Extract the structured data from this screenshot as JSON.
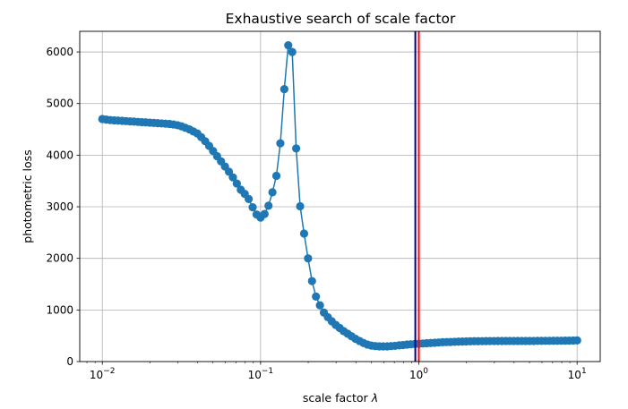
{
  "chart_data": {
    "type": "line",
    "title": "Exhaustive search of scale factor",
    "xlabel": "scale factor",
    "xlabel_symbol": "λ",
    "ylabel": "photometric loss",
    "xscale": "log",
    "xlim": [
      0.0072,
      14.0
    ],
    "ylim": [
      0,
      6400
    ],
    "grid": true,
    "x_ticks": [
      {
        "value": 0.01,
        "base": "10",
        "exp": "−2"
      },
      {
        "value": 0.1,
        "base": "10",
        "exp": "−1"
      },
      {
        "value": 1,
        "base": "10",
        "exp": "0"
      },
      {
        "value": 10,
        "base": "10",
        "exp": "1"
      }
    ],
    "y_ticks": [
      0,
      1000,
      2000,
      3000,
      4000,
      5000,
      6000
    ],
    "series": [
      {
        "color": "#1f77b4",
        "marker": "circle",
        "x_range": [
          0.01,
          10
        ],
        "points_count": 121,
        "y": [
          4700,
          4690,
          4680,
          4675,
          4670,
          4665,
          4660,
          4655,
          4650,
          4645,
          4640,
          4635,
          4630,
          4625,
          4620,
          4615,
          4610,
          4605,
          4595,
          4580,
          4560,
          4530,
          4500,
          4460,
          4420,
          4350,
          4270,
          4180,
          4080,
          3980,
          3880,
          3780,
          3680,
          3570,
          3450,
          3330,
          3250,
          3150,
          2990,
          2850,
          2790,
          2860,
          3020,
          3280,
          3600,
          4230,
          5280,
          6130,
          6000,
          4130,
          3010,
          2480,
          2000,
          1560,
          1260,
          1090,
          950,
          860,
          780,
          710,
          650,
          590,
          540,
          490,
          440,
          400,
          360,
          330,
          310,
          300,
          295,
          295,
          295,
          300,
          305,
          315,
          320,
          330,
          335,
          340,
          345,
          350,
          355,
          360,
          365,
          370,
          375,
          378,
          380,
          383,
          386,
          388,
          390,
          392,
          394,
          395,
          396,
          397,
          398,
          398,
          399,
          399,
          400,
          400,
          400,
          400,
          400,
          400,
          400,
          400,
          401,
          401,
          402,
          402,
          403,
          403,
          404,
          405,
          406,
          408,
          410
        ]
      }
    ],
    "vlines": [
      {
        "x": 0.95,
        "color": "#00008b"
      },
      {
        "x": 1.0,
        "color": "#ff0000"
      }
    ]
  }
}
